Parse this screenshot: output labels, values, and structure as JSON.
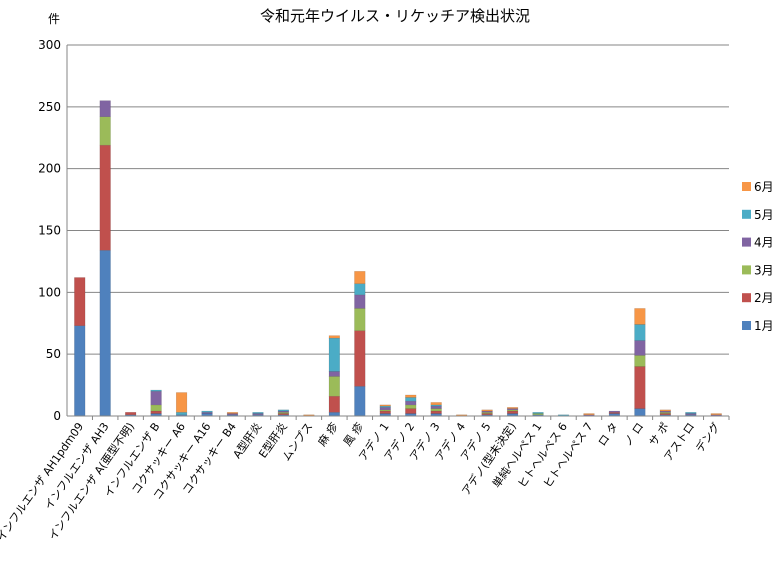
{
  "chart_data": {
    "type": "bar",
    "stacked": true,
    "title": "令和元年ウイルス・リケッチア検出状況",
    "ylabel": "件",
    "ylim": [
      0,
      300
    ],
    "yticks": [
      0,
      50,
      100,
      150,
      200,
      250,
      300
    ],
    "grid": true,
    "legend_position": "right",
    "categories": [
      "インフルエンザ AH1pdm09",
      "インフルエンザ AH3",
      "インフルエンザ A(亜型不明)",
      "インフルエンザ B",
      "コクサッキー A6",
      "コクサッキー A16",
      "コクサッキー B4",
      "A型肝炎",
      "E型肝炎",
      "ムンプス",
      "麻 疹",
      "風 疹",
      "アデノ 1",
      "アデノ 2",
      "アデノ 3",
      "アデノ 4",
      "アデノ 5",
      "アデノ(型未決定)",
      "単純ヘルペス 1",
      "ヒトヘルペス 6",
      "ヒトヘルペス 7",
      "ロ タ",
      "ノ ロ",
      "サ ポ",
      "アストロ",
      "デング"
    ],
    "series": [
      {
        "name": "1月",
        "color": "#4F81BD",
        "values": [
          73,
          134,
          1,
          2,
          1,
          2,
          1,
          1,
          1,
          0,
          3,
          24,
          2,
          2,
          2,
          0,
          1,
          2,
          1,
          0,
          0,
          2,
          6,
          1,
          1,
          0
        ]
      },
      {
        "name": "2月",
        "color": "#C0504D",
        "values": [
          39,
          85,
          2,
          2,
          0,
          0,
          0,
          0,
          1,
          0,
          13,
          45,
          2,
          4,
          2,
          0,
          1,
          2,
          0,
          0,
          0,
          1,
          34,
          1,
          0,
          0
        ]
      },
      {
        "name": "3月",
        "color": "#9BBB59",
        "values": [
          0,
          23,
          0,
          5,
          0,
          0,
          0,
          0,
          1,
          0,
          16,
          18,
          1,
          3,
          2,
          0,
          1,
          1,
          1,
          0,
          0,
          0,
          9,
          1,
          0,
          0
        ]
      },
      {
        "name": "4月",
        "color": "#8064A2",
        "values": [
          0,
          13,
          0,
          11,
          0,
          1,
          1,
          1,
          1,
          0,
          4,
          11,
          2,
          3,
          2,
          0,
          1,
          1,
          0,
          0,
          1,
          1,
          12,
          1,
          1,
          1
        ]
      },
      {
        "name": "5月",
        "color": "#4BACC6",
        "values": [
          0,
          0,
          0,
          1,
          2,
          1,
          0,
          1,
          1,
          0,
          27,
          9,
          1,
          3,
          1,
          0,
          0,
          0,
          1,
          1,
          0,
          0,
          13,
          0,
          1,
          0
        ]
      },
      {
        "name": "6月",
        "color": "#F79646",
        "values": [
          0,
          0,
          0,
          0,
          16,
          0,
          1,
          0,
          0,
          1,
          2,
          10,
          1,
          2,
          2,
          1,
          1,
          1,
          0,
          0,
          1,
          0,
          13,
          1,
          0,
          1
        ]
      }
    ]
  }
}
